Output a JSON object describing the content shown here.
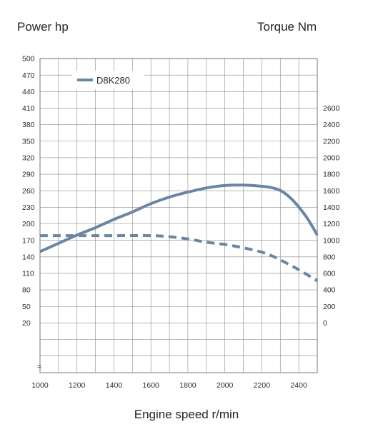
{
  "chart_data": {
    "type": "line",
    "left_axis_title": "Power hp",
    "right_axis_title": "Torque Nm",
    "xlabel": "Engine speed r/min",
    "x_ticks": [
      1000,
      1200,
      1400,
      1600,
      1800,
      2000,
      2200,
      2400
    ],
    "x_range": [
      1000,
      2500
    ],
    "left_ticks": [
      500,
      470,
      440,
      410,
      380,
      350,
      320,
      290,
      260,
      230,
      200,
      170,
      140,
      110,
      80,
      50,
      20
    ],
    "left_range": [
      20,
      500
    ],
    "right_ticks": [
      2600,
      2400,
      2200,
      2000,
      1800,
      1600,
      1400,
      1200,
      1000,
      800,
      600,
      400,
      200,
      0
    ],
    "right_range": [
      0,
      2600
    ],
    "axis_break_symbol": "=",
    "grid": true,
    "legend": {
      "position": "top-left",
      "entries": [
        "D8K280"
      ]
    },
    "colors": {
      "series": "#6b85a3",
      "grid": "#8a8a8a",
      "frame": "#555555"
    },
    "series": [
      {
        "name": "D8K280",
        "quantity": "power",
        "axis": "left",
        "style": "dashed",
        "x": [
          1000,
          1200,
          1400,
          1600,
          1700,
          1800,
          1900,
          2000,
          2100,
          2200,
          2250,
          2300,
          2400,
          2500
        ],
        "y": [
          178,
          178,
          178,
          178,
          176,
          172,
          166,
          162,
          156,
          148,
          142,
          134,
          116,
          96
        ]
      },
      {
        "name": "D8K280",
        "quantity": "torque",
        "axis": "right",
        "style": "solid",
        "x": [
          1000,
          1100,
          1200,
          1300,
          1400,
          1500,
          1600,
          1700,
          1800,
          1900,
          2000,
          2100,
          2200,
          2250,
          2300,
          2350,
          2400,
          2450,
          2500
        ],
        "y": [
          860,
          960,
          1060,
          1150,
          1250,
          1340,
          1440,
          1520,
          1580,
          1630,
          1660,
          1665,
          1650,
          1635,
          1600,
          1520,
          1400,
          1250,
          1060
        ]
      }
    ]
  }
}
